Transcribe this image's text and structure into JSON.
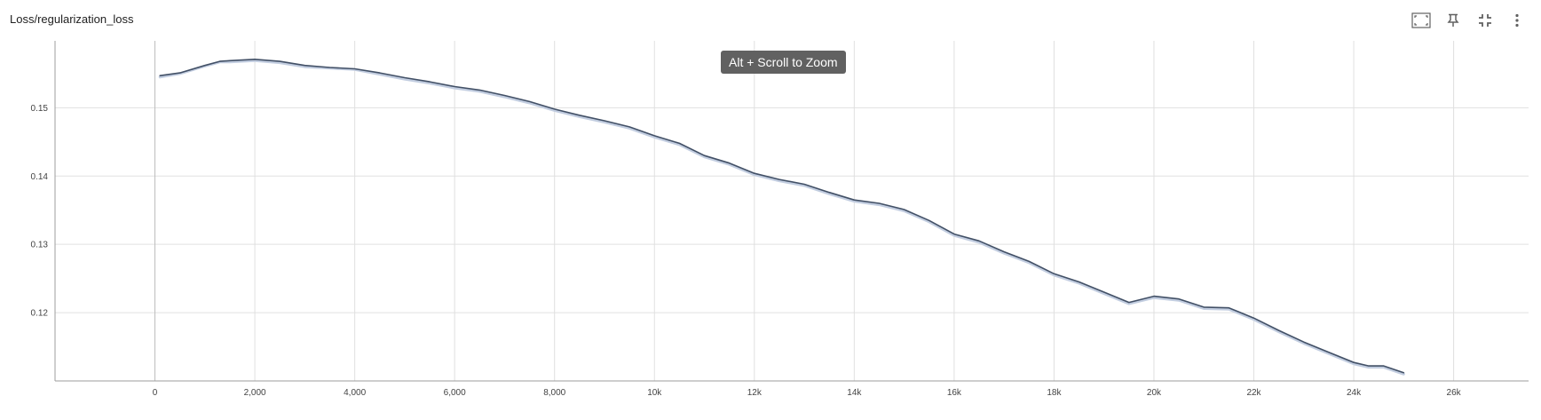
{
  "card": {
    "title": "Loss/regularization_loss",
    "zoom_hint": "Alt + Scroll to Zoom",
    "toolbar": [
      {
        "name": "fit-domain-icon"
      },
      {
        "name": "pin-icon"
      },
      {
        "name": "collapse-icon"
      },
      {
        "name": "more-vert-icon"
      }
    ]
  },
  "chart_data": {
    "type": "line",
    "title": "Loss/regularization_loss",
    "xlabel": "",
    "ylabel": "",
    "xlim": [
      -2000,
      27500
    ],
    "ylim": [
      0.11,
      0.1598
    ],
    "grid": true,
    "x_ticks": [
      -2000,
      0,
      2000,
      4000,
      6000,
      8000,
      10000,
      12000,
      14000,
      16000,
      18000,
      20000,
      22000,
      24000,
      26000
    ],
    "x_tick_labels": [
      "",
      "0",
      "2,000",
      "4,000",
      "6,000",
      "8,000",
      "10k",
      "12k",
      "14k",
      "16k",
      "18k",
      "20k",
      "22k",
      "24k",
      "26k"
    ],
    "y_ticks": [
      0.12,
      0.13,
      0.14,
      0.15
    ],
    "y_tick_labels": [
      "0.12",
      "0.13",
      "0.14",
      "0.15"
    ],
    "colors": {
      "smoothed": "#425066",
      "raw": "#c2cde0",
      "grid": "#e0e0e0",
      "axis": "#9e9e9e"
    },
    "series": [
      {
        "role": "raw",
        "x": [
          100,
          500,
          1000,
          1300,
          1500,
          2000,
          2500,
          3000,
          3500,
          4000,
          4500,
          5000,
          5500,
          6000,
          6500,
          7000,
          7500,
          8000,
          8500,
          9000,
          9500,
          10000,
          10500,
          11000,
          11500,
          12000,
          12500,
          13000,
          13500,
          14000,
          14500,
          15000,
          15500,
          16000,
          16500,
          17000,
          17500,
          18000,
          18500,
          19000,
          19500,
          20000,
          20500,
          21000,
          21500,
          22000,
          22500,
          23000,
          23500,
          24000,
          24300,
          24600,
          25000
        ],
        "y": [
          0.1545,
          0.155,
          0.1561,
          0.1567,
          0.1567,
          0.1569,
          0.1566,
          0.156,
          0.1558,
          0.1556,
          0.1549,
          0.1542,
          0.1536,
          0.1529,
          0.1524,
          0.1516,
          0.1507,
          0.1496,
          0.1487,
          0.1479,
          0.147,
          0.1457,
          0.1446,
          0.1428,
          0.1417,
          0.1402,
          0.1393,
          0.1386,
          0.1374,
          0.1363,
          0.1358,
          0.1349,
          0.1333,
          0.1313,
          0.1303,
          0.1287,
          0.1273,
          0.1255,
          0.1243,
          0.1228,
          0.1213,
          0.1222,
          0.1218,
          0.1206,
          0.1205,
          0.119,
          0.1172,
          0.1155,
          0.114,
          0.1125,
          0.112,
          0.112,
          0.111
        ]
      },
      {
        "role": "smoothed",
        "x": [
          100,
          500,
          1000,
          1300,
          1500,
          2000,
          2500,
          3000,
          3500,
          4000,
          4500,
          5000,
          5500,
          6000,
          6500,
          7000,
          7500,
          8000,
          8500,
          9000,
          9500,
          10000,
          10500,
          11000,
          11500,
          12000,
          12500,
          13000,
          13500,
          14000,
          14500,
          15000,
          15500,
          16000,
          16500,
          17000,
          17500,
          18000,
          18500,
          19000,
          19500,
          20000,
          20500,
          21000,
          21500,
          22000,
          22500,
          23000,
          23500,
          24000,
          24300,
          24600,
          25000
        ],
        "y": [
          0.1547,
          0.1551,
          0.1562,
          0.1568,
          0.1569,
          0.1571,
          0.1568,
          0.1562,
          0.1559,
          0.1557,
          0.1551,
          0.1544,
          0.1538,
          0.1531,
          0.1526,
          0.1518,
          0.1509,
          0.1498,
          0.1489,
          0.1481,
          0.1472,
          0.1459,
          0.1448,
          0.143,
          0.1419,
          0.1404,
          0.1395,
          0.1388,
          0.1376,
          0.1365,
          0.136,
          0.1351,
          0.1335,
          0.1315,
          0.1305,
          0.1289,
          0.1275,
          0.1257,
          0.1245,
          0.123,
          0.1215,
          0.1224,
          0.122,
          0.1208,
          0.1207,
          0.1192,
          0.1174,
          0.1157,
          0.1142,
          0.1127,
          0.1122,
          0.1122,
          0.1112
        ]
      }
    ]
  }
}
